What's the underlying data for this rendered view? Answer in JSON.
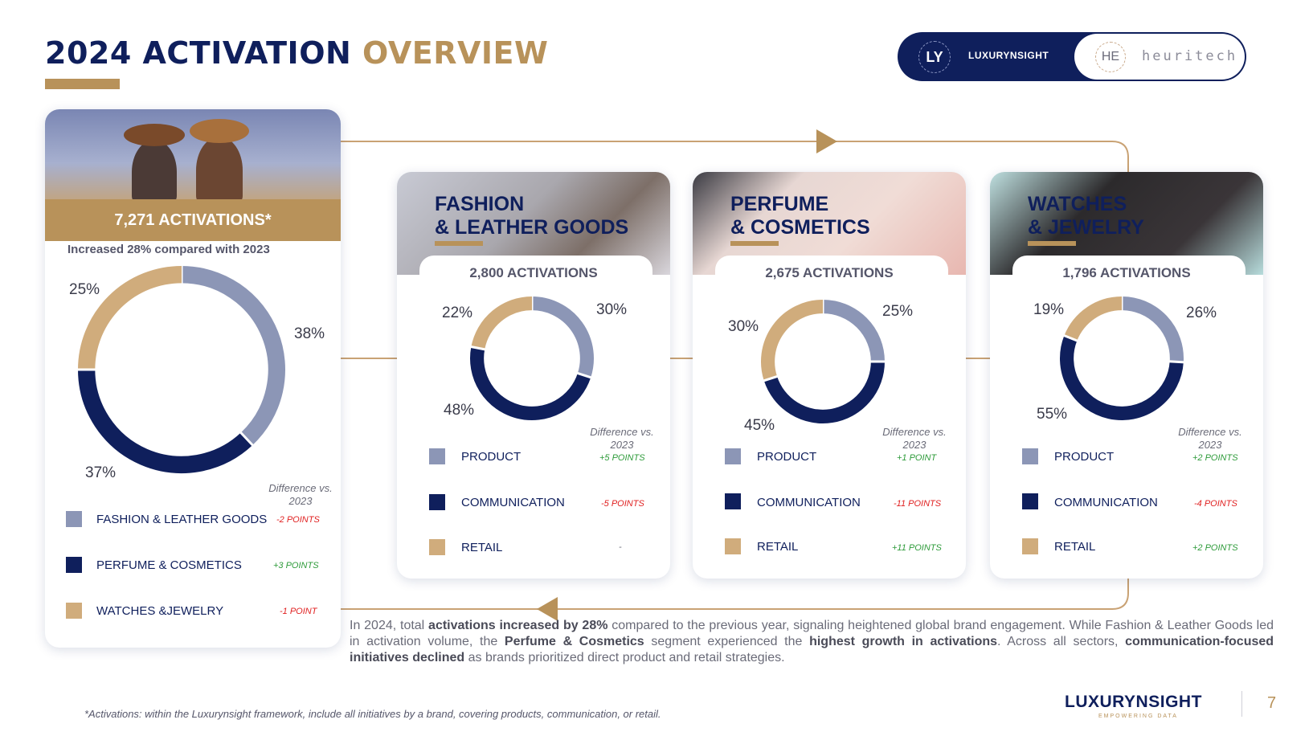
{
  "header": {
    "title_main": "2024 ACTIVATION",
    "title_accent": "OVERVIEW"
  },
  "logos": {
    "left_badge": "LY",
    "left_name": "LUXURYNSIGHT",
    "right_badge": "HE",
    "right_name": "heuritech"
  },
  "colors": {
    "navy": "#0f1f5c",
    "gold": "#b8925a",
    "product": "#8c96b6",
    "communication": "#0f1f5c",
    "retail": "#d0ac7c",
    "positive": "#2e9b3a",
    "negative": "#e02020"
  },
  "total": {
    "activations": "7,271 ACTIVATIONS*",
    "subtitle": "Increased 28% compared with 2023",
    "diff_header": "Difference vs. 2023",
    "legend": [
      {
        "label": "FASHION & LEATHER GOODS",
        "diff": "-2 POINTS",
        "sign": "neg"
      },
      {
        "label": "PERFUME & COSMETICS",
        "diff": "+3 POINTS",
        "sign": "pos"
      },
      {
        "label": "WATCHES &JEWELRY",
        "diff": "-1 POINT",
        "sign": "neg"
      }
    ]
  },
  "segments": [
    {
      "title_line1": "FASHION",
      "title_line2": "& LEATHER GOODS",
      "activations": "2,800 ACTIVATIONS",
      "diff_header": "Difference vs. 2023",
      "legend": [
        {
          "label": "PRODUCT",
          "diff": "+5 POINTS",
          "sign": "pos"
        },
        {
          "label": "COMMUNICATION",
          "diff": "-5 POINTS",
          "sign": "neg"
        },
        {
          "label": "RETAIL",
          "diff": "-",
          "sign": "none"
        }
      ]
    },
    {
      "title_line1": "PERFUME",
      "title_line2": "& COSMETICS",
      "activations": "2,675 ACTIVATIONS",
      "diff_header": "Difference vs. 2023",
      "legend": [
        {
          "label": "PRODUCT",
          "diff": "+1 POINT",
          "sign": "pos"
        },
        {
          "label": "COMMUNICATION",
          "diff": "-11 POINTS",
          "sign": "neg"
        },
        {
          "label": "RETAIL",
          "diff": "+11 POINTS",
          "sign": "pos"
        }
      ]
    },
    {
      "title_line1": "WATCHES",
      "title_line2": "& JEWELRY",
      "activations": "1,796 ACTIVATIONS",
      "diff_header": "Difference vs. 2023",
      "legend": [
        {
          "label": "PRODUCT",
          "diff": "+2 POINTS",
          "sign": "pos"
        },
        {
          "label": "COMMUNICATION",
          "diff": "-4 POINTS",
          "sign": "neg"
        },
        {
          "label": "RETAIL",
          "diff": "+2 POINTS",
          "sign": "pos"
        }
      ]
    }
  ],
  "chart_data": [
    {
      "type": "pie",
      "title": "7,271 ACTIVATIONS*",
      "categories": [
        "FASHION & LEATHER GOODS",
        "PERFUME & COSMETICS",
        "WATCHES &JEWELRY"
      ],
      "values": [
        38,
        37,
        25
      ],
      "labels": [
        "38%",
        "37%",
        "25%"
      ]
    },
    {
      "type": "pie",
      "title": "2,800 ACTIVATIONS",
      "categories": [
        "PRODUCT",
        "COMMUNICATION",
        "RETAIL"
      ],
      "values": [
        30,
        48,
        22
      ],
      "labels": [
        "30%",
        "48%",
        "22%"
      ]
    },
    {
      "type": "pie",
      "title": "2,675 ACTIVATIONS",
      "categories": [
        "PRODUCT",
        "COMMUNICATION",
        "RETAIL"
      ],
      "values": [
        25,
        45,
        30
      ],
      "labels": [
        "25%",
        "45%",
        "30%"
      ]
    },
    {
      "type": "pie",
      "title": "1,796 ACTIVATIONS",
      "categories": [
        "PRODUCT",
        "COMMUNICATION",
        "RETAIL"
      ],
      "values": [
        26,
        55,
        19
      ],
      "labels": [
        "26%",
        "55%",
        "19%"
      ]
    }
  ],
  "summary": {
    "p1": "In 2024, total ",
    "b1": "activations increased by 28%",
    "p2": " compared to the previous year, signaling heightened global brand engagement. While Fashion & Leather Goods led in activation volume, the ",
    "b2": "Perfume & Cosmetics",
    "p3": " segment experienced the ",
    "b3": "highest growth in activations",
    "p4": ". Across all sectors, ",
    "b4": "communication-focused initiatives declined",
    "p5": " as brands prioritized direct product and retail strategies."
  },
  "footer": {
    "footnote": "*Activations: within the Luxurynsight framework, include all initiatives by a brand, covering products, communication, or retail.",
    "logo": "LUXURYNSIGHT",
    "logo_sub": "EMPOWERING DATA",
    "page": "7"
  }
}
